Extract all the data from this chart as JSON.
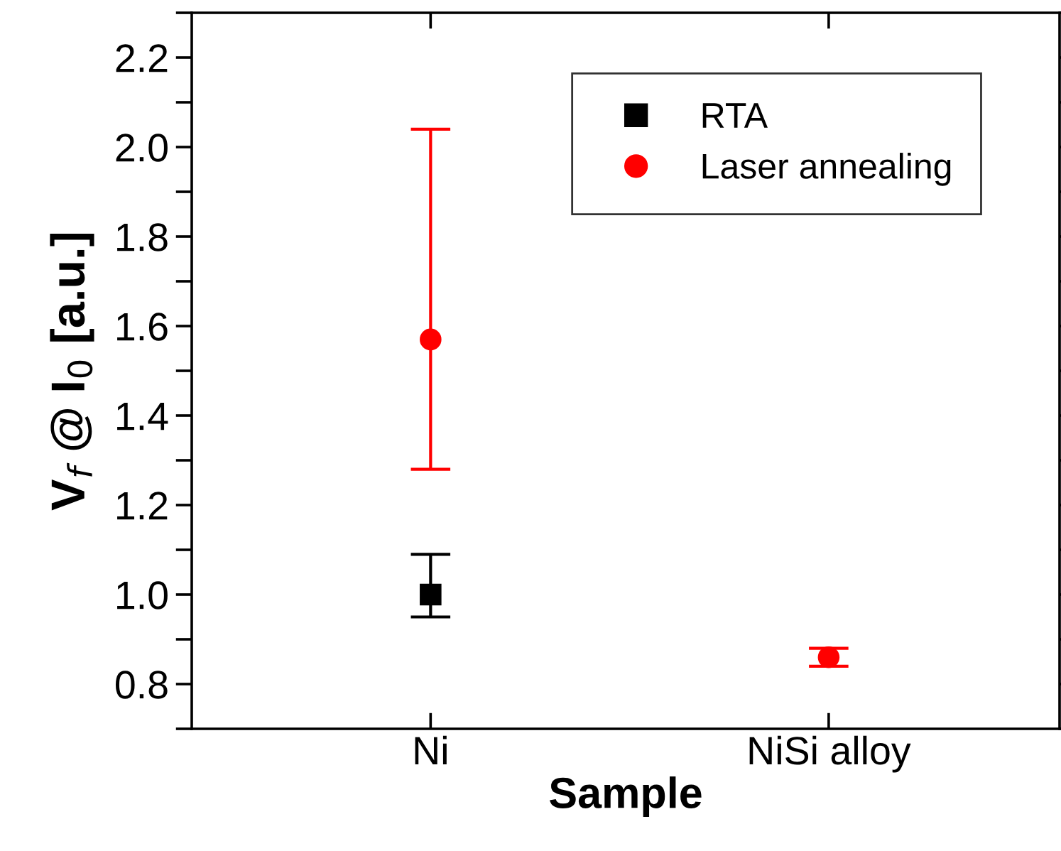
{
  "chart_data": {
    "type": "scatter",
    "xlabel": "Sample",
    "ylabel": "V$_{f}$ @ I$_{0}$ [a.u.]",
    "categories": [
      "Ni",
      "NiSi alloy"
    ],
    "series": [
      {
        "name": "RTA",
        "color": "#000000",
        "marker": "square",
        "values": [
          1.0,
          null
        ],
        "errors": [
          [
            0.95,
            1.09
          ],
          null
        ]
      },
      {
        "name": "Laser annealing",
        "color": "#ff0000",
        "marker": "circle",
        "values": [
          1.57,
          0.86
        ],
        "errors": [
          [
            1.28,
            2.04
          ],
          [
            0.84,
            0.88
          ]
        ]
      }
    ],
    "ylim": [
      0.7,
      2.3
    ],
    "yticks": [
      {
        "value": 0.7,
        "label": null
      },
      0.8,
      {
        "value": 0.9,
        "label": null
      },
      {
        "value": 1.0,
        "label": "1.0"
      },
      {
        "value": 1.1,
        "label": null
      },
      1.2,
      {
        "value": 1.3,
        "label": null
      },
      1.4,
      {
        "value": 1.5,
        "label": null
      },
      1.6,
      {
        "value": 1.7,
        "label": null
      },
      1.8,
      {
        "value": 1.9,
        "label": null
      },
      {
        "value": 2.0,
        "label": "2.0"
      },
      {
        "value": 2.1,
        "label": null
      },
      2.2,
      {
        "value": 2.3,
        "label": null
      }
    ],
    "legend": "top right",
    "grid": false
  }
}
